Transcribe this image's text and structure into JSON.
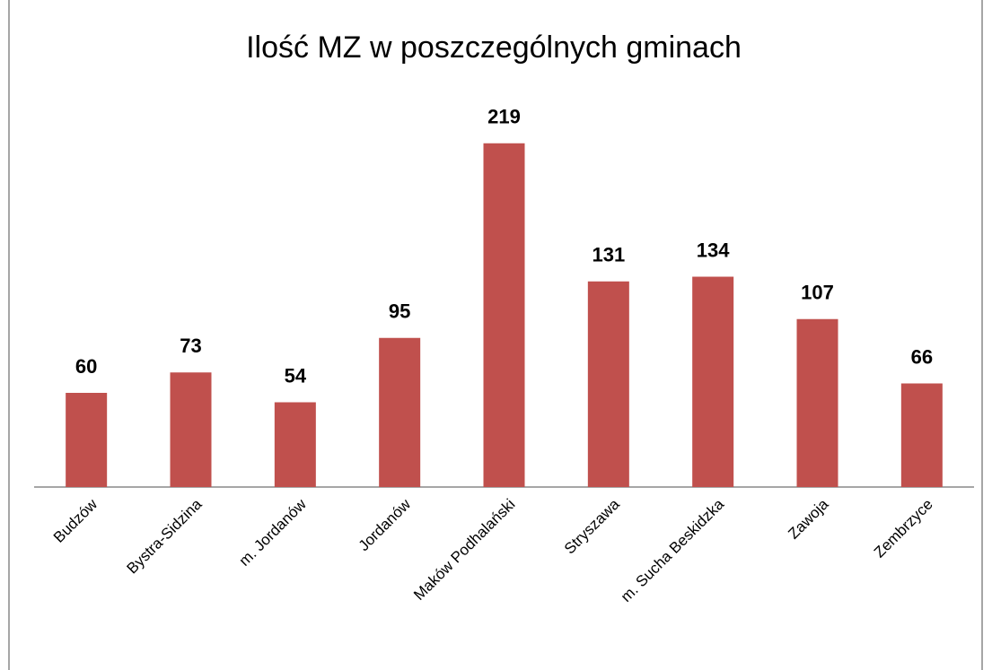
{
  "chart_data": {
    "type": "bar",
    "title": "Ilość MZ w poszczególnych gminach",
    "categories": [
      "Budzów",
      "Bystra-Sidzina",
      "m. Jordanów",
      "Jordanów",
      "Maków Podhalański",
      "Stryszawa",
      "m. Sucha Beskidzka",
      "Zawoja",
      "Zembrzyce"
    ],
    "values": [
      60,
      73,
      54,
      95,
      219,
      131,
      134,
      107,
      66
    ],
    "color": "#c0504d",
    "ylim": [
      0,
      240
    ]
  }
}
